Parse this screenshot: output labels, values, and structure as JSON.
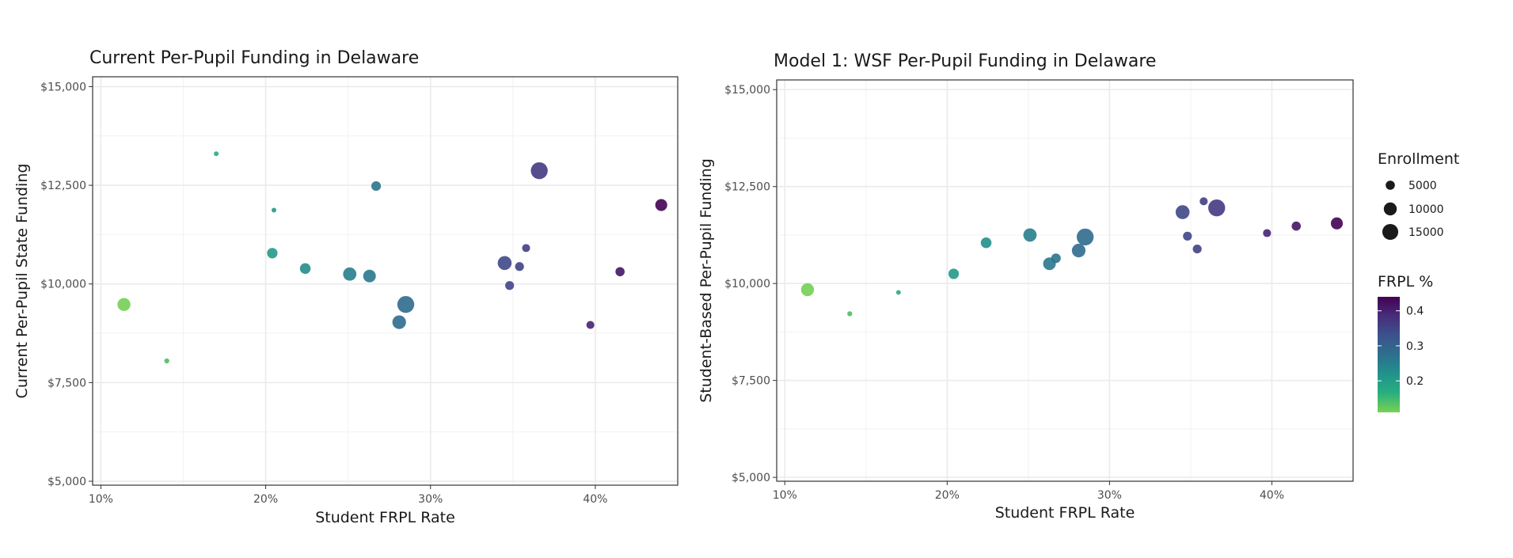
{
  "chart_data": [
    {
      "type": "scatter",
      "title": "Current Per-Pupil Funding in Delaware",
      "xlabel": "Student FRPL Rate",
      "ylabel": "Current Per-Pupil State Funding",
      "xlim": [
        0.095,
        0.45
      ],
      "ylim": [
        4900,
        15250
      ],
      "xticks": [
        {
          "value": 0.1,
          "label": "10%"
        },
        {
          "value": 0.2,
          "label": "20%"
        },
        {
          "value": 0.3,
          "label": "30%"
        },
        {
          "value": 0.4,
          "label": "40%"
        }
      ],
      "yticks": [
        {
          "value": 5000,
          "label": "$5,000"
        },
        {
          "value": 7500,
          "label": "$7,500"
        },
        {
          "value": 10000,
          "label": "$10,000"
        },
        {
          "value": 12500,
          "label": "$12,500"
        },
        {
          "value": 15000,
          "label": "$15,000"
        }
      ],
      "grid": true,
      "points": [
        {
          "x": 0.114,
          "y": 9480,
          "enrollment": 10000,
          "frpl": 0.114
        },
        {
          "x": 0.14,
          "y": 8050,
          "enrollment": 1500,
          "frpl": 0.14
        },
        {
          "x": 0.17,
          "y": 13300,
          "enrollment": 400,
          "frpl": 0.17
        },
        {
          "x": 0.204,
          "y": 10780,
          "enrollment": 6500,
          "frpl": 0.204
        },
        {
          "x": 0.205,
          "y": 11870,
          "enrollment": 900,
          "frpl": 0.205
        },
        {
          "x": 0.224,
          "y": 10390,
          "enrollment": 6800,
          "frpl": 0.224
        },
        {
          "x": 0.251,
          "y": 10250,
          "enrollment": 10500,
          "frpl": 0.251
        },
        {
          "x": 0.263,
          "y": 10200,
          "enrollment": 9500,
          "frpl": 0.263
        },
        {
          "x": 0.267,
          "y": 12480,
          "enrollment": 5500,
          "frpl": 0.267
        },
        {
          "x": 0.281,
          "y": 9030,
          "enrollment": 11000,
          "frpl": 0.281
        },
        {
          "x": 0.285,
          "y": 9480,
          "enrollment": 17000,
          "frpl": 0.285
        },
        {
          "x": 0.345,
          "y": 10530,
          "enrollment": 11500,
          "frpl": 0.345
        },
        {
          "x": 0.348,
          "y": 9960,
          "enrollment": 4700,
          "frpl": 0.348
        },
        {
          "x": 0.354,
          "y": 10440,
          "enrollment": 4700,
          "frpl": 0.354
        },
        {
          "x": 0.358,
          "y": 10910,
          "enrollment": 3800,
          "frpl": 0.358
        },
        {
          "x": 0.366,
          "y": 12870,
          "enrollment": 17000,
          "frpl": 0.366
        },
        {
          "x": 0.397,
          "y": 8960,
          "enrollment": 3800,
          "frpl": 0.397
        },
        {
          "x": 0.415,
          "y": 10310,
          "enrollment": 5000,
          "frpl": 0.415
        },
        {
          "x": 0.44,
          "y": 12000,
          "enrollment": 8500,
          "frpl": 0.44
        }
      ]
    },
    {
      "type": "scatter",
      "title": "Model 1: WSF Per-Pupil Funding in Delaware",
      "xlabel": "Student FRPL Rate",
      "ylabel": "Student-Based Per-Pupil Funding",
      "xlim": [
        0.095,
        0.45
      ],
      "ylim": [
        4900,
        15250
      ],
      "xticks": [
        {
          "value": 0.1,
          "label": "10%"
        },
        {
          "value": 0.2,
          "label": "20%"
        },
        {
          "value": 0.3,
          "label": "30%"
        },
        {
          "value": 0.4,
          "label": "40%"
        }
      ],
      "yticks": [
        {
          "value": 5000,
          "label": "$5,000"
        },
        {
          "value": 7500,
          "label": "$7,500"
        },
        {
          "value": 10000,
          "label": "$10,000"
        },
        {
          "value": 12500,
          "label": "$12,500"
        },
        {
          "value": 15000,
          "label": "$15,000"
        }
      ],
      "grid": true,
      "points": [
        {
          "x": 0.114,
          "y": 9840,
          "enrollment": 10000,
          "frpl": 0.114
        },
        {
          "x": 0.14,
          "y": 9220,
          "enrollment": 1500,
          "frpl": 0.14
        },
        {
          "x": 0.17,
          "y": 9770,
          "enrollment": 400,
          "frpl": 0.17
        },
        {
          "x": 0.204,
          "y": 10250,
          "enrollment": 6500,
          "frpl": 0.204
        },
        {
          "x": 0.224,
          "y": 11050,
          "enrollment": 6800,
          "frpl": 0.224
        },
        {
          "x": 0.251,
          "y": 11250,
          "enrollment": 10500,
          "frpl": 0.251
        },
        {
          "x": 0.263,
          "y": 10510,
          "enrollment": 9500,
          "frpl": 0.263
        },
        {
          "x": 0.267,
          "y": 10650,
          "enrollment": 5500,
          "frpl": 0.267
        },
        {
          "x": 0.281,
          "y": 10850,
          "enrollment": 11000,
          "frpl": 0.281
        },
        {
          "x": 0.285,
          "y": 11200,
          "enrollment": 17000,
          "frpl": 0.285
        },
        {
          "x": 0.345,
          "y": 11840,
          "enrollment": 11500,
          "frpl": 0.345
        },
        {
          "x": 0.348,
          "y": 11220,
          "enrollment": 4700,
          "frpl": 0.348
        },
        {
          "x": 0.354,
          "y": 10890,
          "enrollment": 4700,
          "frpl": 0.354
        },
        {
          "x": 0.358,
          "y": 12120,
          "enrollment": 3800,
          "frpl": 0.358
        },
        {
          "x": 0.366,
          "y": 11950,
          "enrollment": 17000,
          "frpl": 0.366
        },
        {
          "x": 0.397,
          "y": 11300,
          "enrollment": 3800,
          "frpl": 0.397
        },
        {
          "x": 0.415,
          "y": 11480,
          "enrollment": 5000,
          "frpl": 0.415
        },
        {
          "x": 0.44,
          "y": 11550,
          "enrollment": 8500,
          "frpl": 0.44
        }
      ]
    }
  ],
  "legend": {
    "size_title": "Enrollment",
    "size_items": [
      {
        "value": 5000,
        "label": "5000"
      },
      {
        "value": 10000,
        "label": "10000"
      },
      {
        "value": 15000,
        "label": "15000"
      }
    ],
    "color_title": "FRPL %",
    "color_range": [
      0.11,
      0.44
    ],
    "color_ticks": [
      {
        "value": 0.2,
        "label": "0.2"
      },
      {
        "value": 0.3,
        "label": "0.3"
      },
      {
        "value": 0.4,
        "label": "0.4"
      }
    ]
  },
  "colors": {
    "viridis": [
      "#79d151",
      "#29af7f",
      "#20928c",
      "#2e6f8e",
      "#3b528b",
      "#472d7b",
      "#440154"
    ],
    "grid": "#ebebeb",
    "panel_border": "#333333"
  }
}
